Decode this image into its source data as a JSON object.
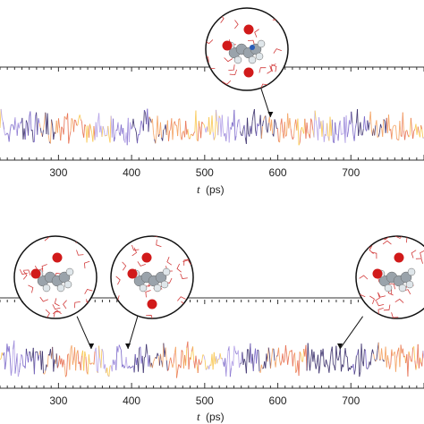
{
  "chart_data": [
    {
      "type": "line",
      "title": "",
      "x_axis": {
        "label": "t",
        "unit": "(ps)",
        "min": 220,
        "max": 800,
        "ticks": [
          300,
          400,
          500,
          600,
          700
        ],
        "tick_labels": [
          "300",
          "400",
          "500",
          "600",
          "700"
        ]
      },
      "y_axis": {
        "label": "",
        "ticks_shown": false
      },
      "grid": false,
      "series": [
        {
          "style": "color-gradient trajectory trace (orange / yellow / violet)"
        }
      ],
      "insets": [
        {
          "type": "molecular-snapshot",
          "x": 590
        }
      ]
    },
    {
      "type": "line",
      "title": "",
      "x_axis": {
        "label": "t",
        "unit": "(ps)",
        "min": 220,
        "max": 800,
        "ticks": [
          300,
          400,
          500,
          600,
          700
        ],
        "tick_labels": [
          "300",
          "400",
          "500",
          "600",
          "700"
        ]
      },
      "y_axis": {
        "label": "",
        "ticks_shown": false
      },
      "grid": false,
      "series": [
        {
          "style": "color-gradient trajectory trace (orange / yellow / violet)"
        }
      ],
      "insets": [
        {
          "type": "molecular-snapshot",
          "x": 345
        },
        {
          "type": "molecular-snapshot",
          "x": 395
        },
        {
          "type": "molecular-snapshot",
          "x": 685
        }
      ]
    }
  ],
  "colors": {
    "axis": "#333333",
    "trace_palette": [
      "#f4a261",
      "#e76f51",
      "#f9c74f",
      "#b5a3e8",
      "#7b68c8",
      "#3a2f6b"
    ],
    "water": "#d23b3b",
    "oxygen": "#d11a1a",
    "carbon": "#9aa3ab",
    "hydrogen": "#dfe6ea",
    "nitrogen": "#2a5cb8"
  }
}
